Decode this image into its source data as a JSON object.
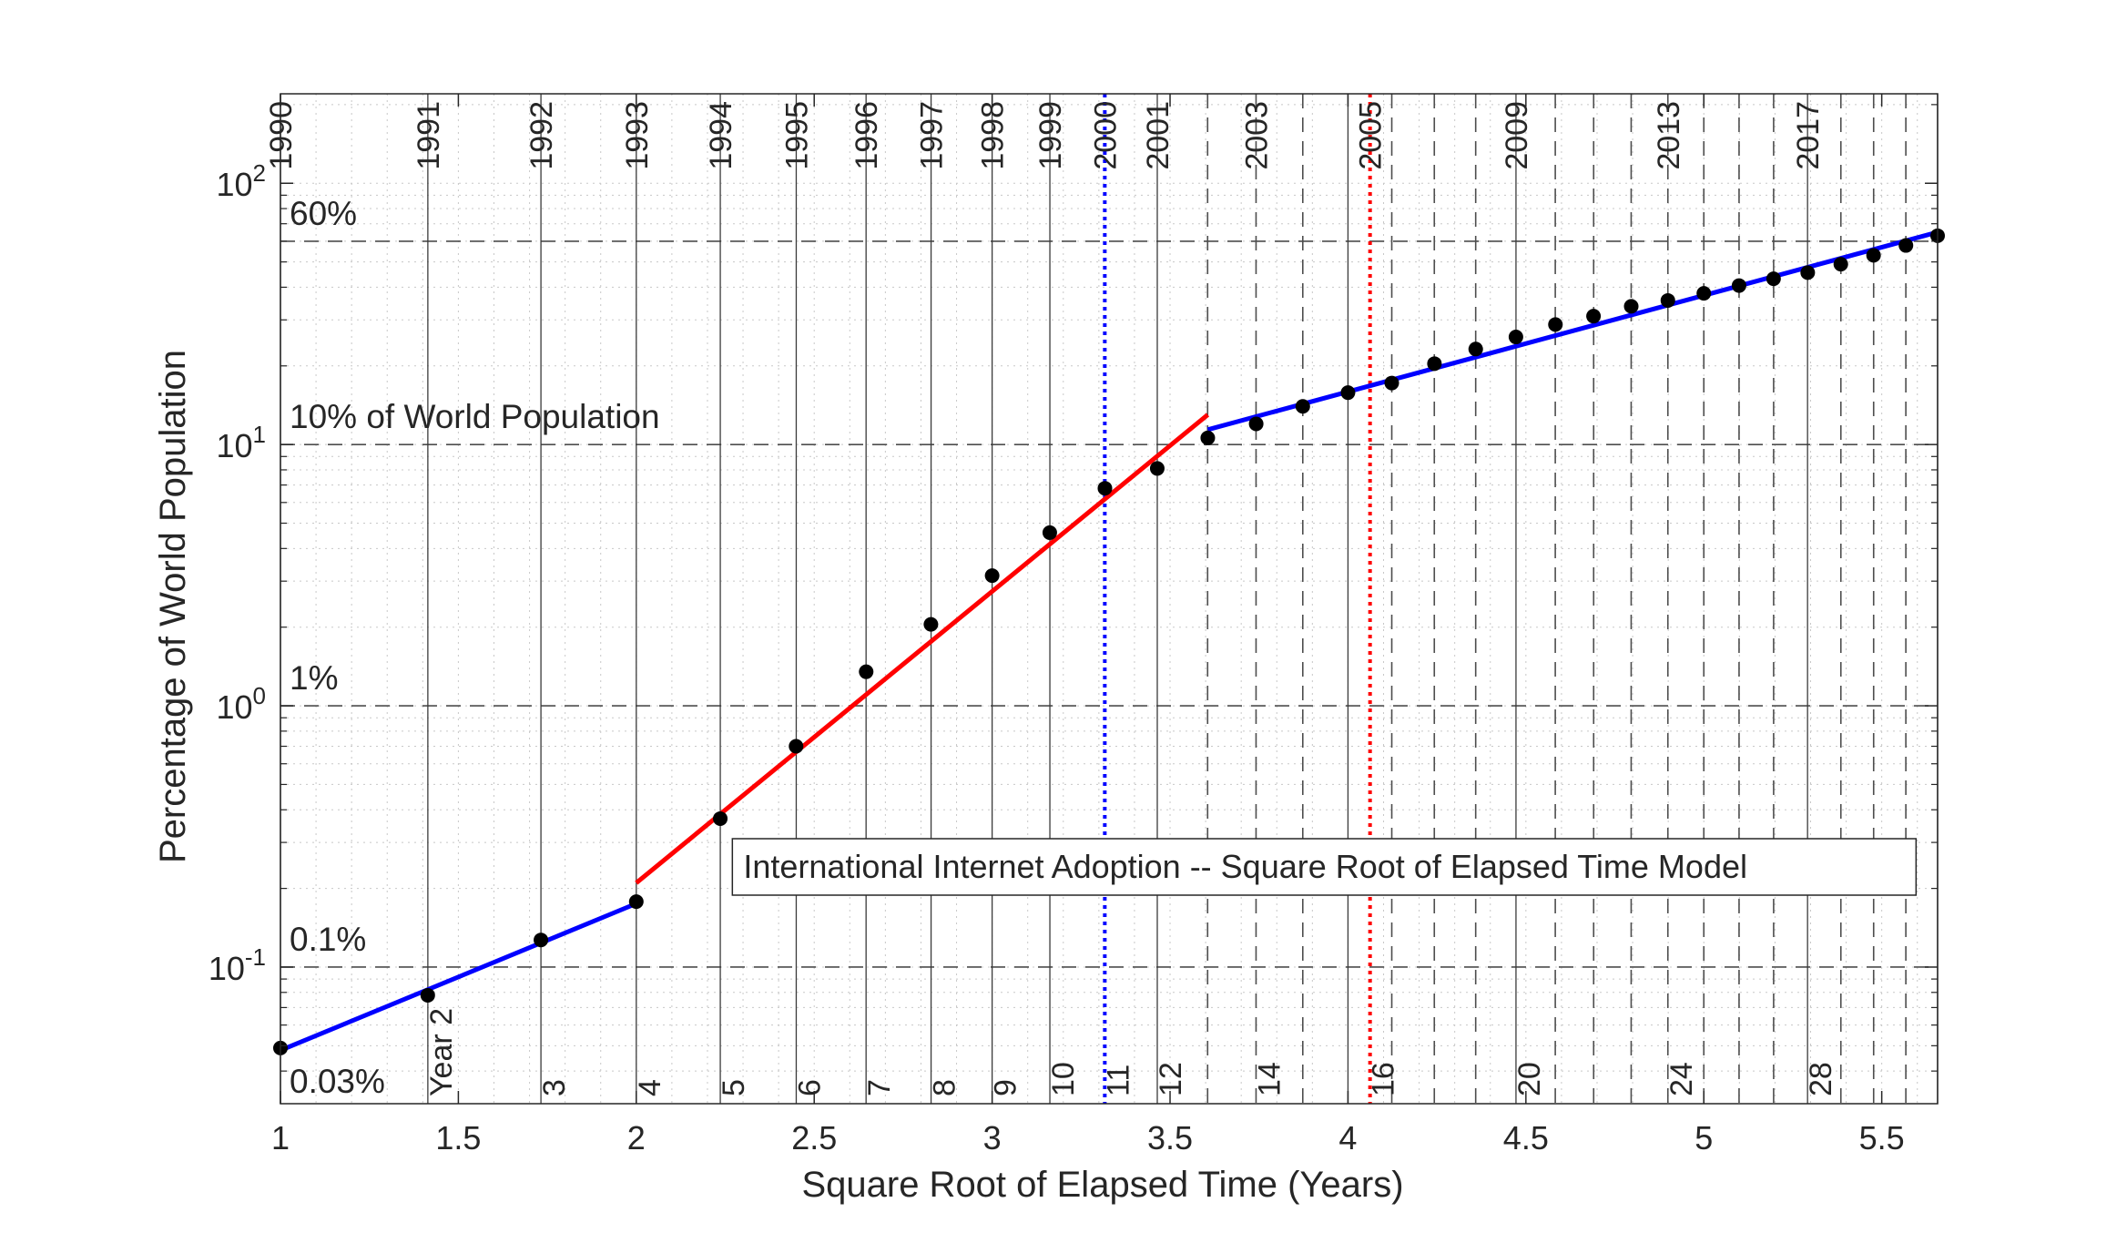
{
  "chart_data": {
    "type": "scatter",
    "title": "",
    "xlabel": "Square Root of Elapsed Time (Years)",
    "ylabel": "Percentage of World Population",
    "xlim": [
      1,
      5.657
    ],
    "ylim": [
      0.03,
      220
    ],
    "yscale": "log",
    "grid": true,
    "x_ticks": [
      1,
      1.5,
      2,
      2.5,
      3,
      3.5,
      4,
      4.5,
      5,
      5.5
    ],
    "x_tick_labels": [
      "1",
      "1.5",
      "2",
      "2.5",
      "3",
      "3.5",
      "4",
      "4.5",
      "5",
      "5.5"
    ],
    "y_ticks": [
      0.1,
      1,
      10,
      100
    ],
    "y_tick_bases": [
      "10",
      "10",
      "10",
      "10"
    ],
    "y_tick_exponents": [
      "-1",
      "0",
      "1",
      "2"
    ],
    "series": [
      {
        "points": [
          [
            1.0,
            0.049
          ],
          [
            1.414,
            0.078
          ],
          [
            1.732,
            0.127
          ],
          [
            2.0,
            0.178
          ],
          [
            2.236,
            0.37
          ],
          [
            2.449,
            0.7
          ],
          [
            2.646,
            1.35
          ],
          [
            2.828,
            2.05
          ],
          [
            3.0,
            3.15
          ],
          [
            3.162,
            4.6
          ],
          [
            3.317,
            6.8
          ],
          [
            3.464,
            8.1
          ],
          [
            3.606,
            10.6
          ],
          [
            3.742,
            12.0
          ],
          [
            3.873,
            14.0
          ],
          [
            4.0,
            15.8
          ],
          [
            4.123,
            17.2
          ],
          [
            4.243,
            20.4
          ],
          [
            4.359,
            23.2
          ],
          [
            4.472,
            25.8
          ],
          [
            4.583,
            28.8
          ],
          [
            4.69,
            31.0
          ],
          [
            4.796,
            33.8
          ],
          [
            4.899,
            35.6
          ],
          [
            5.0,
            37.9
          ],
          [
            5.099,
            40.6
          ],
          [
            5.196,
            43.1
          ],
          [
            5.292,
            45.5
          ],
          [
            5.385,
            49.0
          ],
          [
            5.477,
            53.0
          ],
          [
            5.568,
            57.8
          ],
          [
            5.657,
            63.0
          ]
        ]
      }
    ],
    "fit_lines": [
      {
        "color": "#0000ff",
        "x": [
          1.0,
          2.0
        ],
        "y": [
          0.048,
          0.175
        ]
      },
      {
        "color": "#ff0000",
        "x": [
          2.0,
          3.606
        ],
        "y": [
          0.21,
          13.0
        ]
      },
      {
        "color": "#0000ff",
        "x": [
          3.606,
          5.657
        ],
        "y": [
          11.4,
          65.0
        ]
      }
    ],
    "threshold_lines": [
      {
        "y": 0.1,
        "label": "0.1%"
      },
      {
        "y": 1,
        "label": "1%"
      },
      {
        "y": 10,
        "label": "10% of World Population"
      },
      {
        "y": 60,
        "label": "60%"
      }
    ],
    "bottom_left_label": "0.03%",
    "year_lines": [
      {
        "year": 1,
        "style": "solid",
        "label": "1990",
        "count": ""
      },
      {
        "year": 2,
        "style": "solid",
        "label": "1991",
        "count": "Year 2"
      },
      {
        "year": 3,
        "style": "solid",
        "label": "1992",
        "count": "3"
      },
      {
        "year": 4,
        "style": "solid",
        "label": "1993",
        "count": "4"
      },
      {
        "year": 5,
        "style": "solid",
        "label": "1994",
        "count": "5"
      },
      {
        "year": 6,
        "style": "solid",
        "label": "1995",
        "count": "6"
      },
      {
        "year": 7,
        "style": "solid",
        "label": "1996",
        "count": "7"
      },
      {
        "year": 8,
        "style": "solid",
        "label": "1997",
        "count": "8"
      },
      {
        "year": 9,
        "style": "solid",
        "label": "1998",
        "count": "9"
      },
      {
        "year": 10,
        "style": "solid",
        "label": "1999",
        "count": "10"
      },
      {
        "year": 11,
        "style": "dotted-blue",
        "label": "2000",
        "count": "11"
      },
      {
        "year": 12,
        "style": "solid",
        "label": "2001",
        "count": "12"
      },
      {
        "year": 13,
        "style": "dashed",
        "label": "",
        "count": ""
      },
      {
        "year": 14,
        "style": "dashed",
        "label": "2003",
        "count": "14"
      },
      {
        "year": 15,
        "style": "dashed",
        "label": "",
        "count": ""
      },
      {
        "year": 16,
        "style": "solid",
        "label": "",
        "count": ""
      },
      {
        "year": 16.5,
        "style": "dotted-red",
        "label": "2005",
        "count": "16"
      },
      {
        "year": 17,
        "style": "dashed",
        "label": "",
        "count": ""
      },
      {
        "year": 18,
        "style": "dashed",
        "label": "",
        "count": ""
      },
      {
        "year": 19,
        "style": "dashed",
        "label": "",
        "count": ""
      },
      {
        "year": 20,
        "style": "solid",
        "label": "2009",
        "count": "20"
      },
      {
        "year": 21,
        "style": "dashed",
        "label": "",
        "count": ""
      },
      {
        "year": 22,
        "style": "dashed",
        "label": "",
        "count": ""
      },
      {
        "year": 23,
        "style": "dashed",
        "label": "",
        "count": ""
      },
      {
        "year": 24,
        "style": "dashed",
        "label": "2013",
        "count": "24"
      },
      {
        "year": 25,
        "style": "dashed",
        "label": "",
        "count": ""
      },
      {
        "year": 26,
        "style": "dashed",
        "label": "",
        "count": ""
      },
      {
        "year": 27,
        "style": "dashed",
        "label": "",
        "count": ""
      },
      {
        "year": 28,
        "style": "solid",
        "label": "2017",
        "count": "28"
      },
      {
        "year": 29,
        "style": "dashed",
        "label": "",
        "count": ""
      },
      {
        "year": 30,
        "style": "dashed",
        "label": "",
        "count": ""
      },
      {
        "year": 31,
        "style": "dashed",
        "label": "",
        "count": ""
      },
      {
        "year": 32,
        "style": "solid",
        "label": "",
        "count": ""
      }
    ],
    "annotation": "International Internet Adoption -- Square Root of Elapsed Time Model",
    "colors": {
      "points": "#000000",
      "blue_fit": "#0000ff",
      "red_fit": "#ff0000",
      "year_2000_line": "#0000ff",
      "year_2005_line": "#ff0000",
      "year_2000_label": "#0000ff"
    }
  }
}
